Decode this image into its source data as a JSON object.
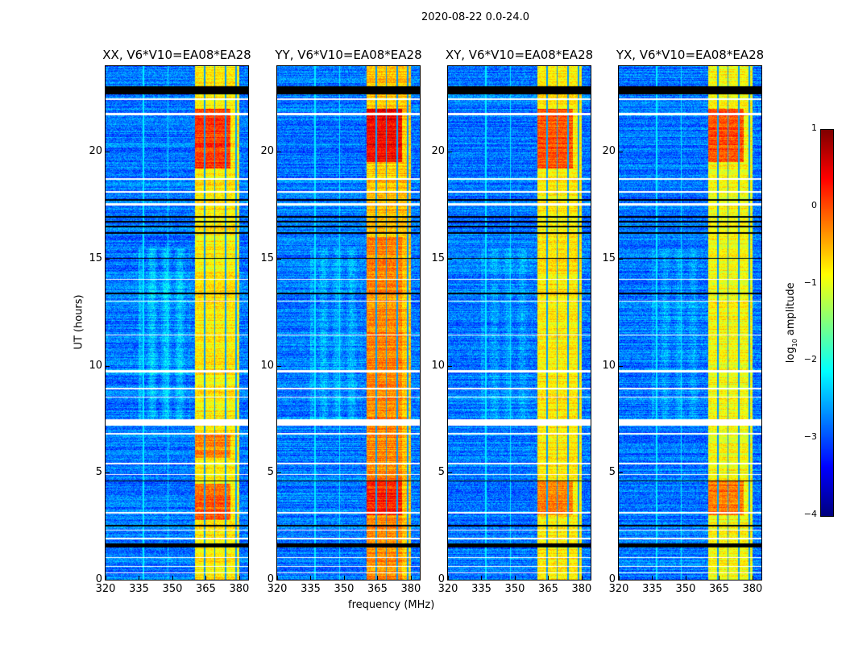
{
  "chart_data": {
    "type": "heatmap",
    "title": "2020-08-22 0.0-24.0",
    "xlabel": "frequency (MHz)",
    "ylabel": "UT (hours)",
    "xlim": [
      320,
      384
    ],
    "ylim": [
      0,
      24
    ],
    "xticks": [
      "320",
      "335",
      "350",
      "365",
      "380"
    ],
    "xtick_values": [
      320,
      335,
      350,
      365,
      380
    ],
    "yticks": [
      "0",
      "5",
      "10",
      "15",
      "20"
    ],
    "ytick_values": [
      0,
      5,
      10,
      15,
      20
    ],
    "colorbar": {
      "label": "log10 amplitude",
      "label_main": "log",
      "label_sub": "10",
      "label_rest": " amplitude",
      "colormap": "jet",
      "range": [
        -4,
        1
      ],
      "ticks": [
        "1",
        "0",
        "−1",
        "−2",
        "−3",
        "−4"
      ],
      "tick_values": [
        1,
        0,
        -1,
        -2,
        -3,
        -4
      ]
    },
    "background_level": -2.8,
    "rfi_band_mhz": [
      360,
      380
    ],
    "rfi_gaps_mhz": [
      364.5,
      369,
      374,
      378.5
    ],
    "flagged_white_hours": [
      [
        7.2,
        7.5
      ],
      [
        22.4,
        22.5
      ],
      [
        21.7,
        21.8
      ],
      [
        18.7,
        18.75
      ],
      [
        18.1,
        18.15
      ],
      [
        17.5,
        17.6
      ],
      [
        14.0,
        14.05
      ],
      [
        13.0,
        13.05
      ],
      [
        11.4,
        11.45
      ],
      [
        9.7,
        9.8
      ],
      [
        8.9,
        8.95
      ],
      [
        8.5,
        8.55
      ],
      [
        6.8,
        6.85
      ],
      [
        5.4,
        5.45
      ],
      [
        4.9,
        4.95
      ],
      [
        3.1,
        3.15
      ],
      [
        2.3,
        2.35
      ],
      [
        1.9,
        1.95
      ],
      [
        1.0,
        1.05
      ],
      [
        0.6,
        0.65
      ],
      [
        0.3,
        0.35
      ]
    ],
    "black_line_hours": [
      [
        22.7,
        23.05
      ],
      [
        17.7,
        17.8
      ],
      [
        16.9,
        17.0
      ],
      [
        16.7,
        16.75
      ],
      [
        16.45,
        16.55
      ],
      [
        16.15,
        16.25
      ],
      [
        15.0,
        15.05
      ],
      [
        13.35,
        13.4
      ],
      [
        4.6,
        4.65
      ],
      [
        2.5,
        2.55
      ],
      [
        1.5,
        1.7
      ]
    ],
    "panels": [
      {
        "title": "XX, V6*V10=EA08*EA28",
        "band_level": -0.8,
        "enhanced": [
          [
            19.2,
            22,
            0.1
          ],
          [
            2.8,
            4.5,
            -0.1
          ],
          [
            5.7,
            6.8,
            -0.3
          ]
        ],
        "diffuse_level": -2.1
      },
      {
        "title": "YY, V6*V10=EA08*EA28",
        "band_level": -0.6,
        "enhanced": [
          [
            19.5,
            22,
            0.4
          ],
          [
            3.0,
            4.6,
            0.2
          ],
          [
            0,
            16,
            -0.3
          ]
        ],
        "diffuse_level": -2.3
      },
      {
        "title": "XY, V6*V10=EA08*EA28",
        "band_level": -0.8,
        "enhanced": [
          [
            19.2,
            22,
            0.0
          ],
          [
            3.0,
            4.6,
            -0.2
          ]
        ],
        "diffuse_level": -2.4
      },
      {
        "title": "YX, V6*V10=EA08*EA28",
        "band_level": -0.9,
        "enhanced": [
          [
            19.5,
            22,
            0.0
          ],
          [
            3.0,
            4.6,
            -0.2
          ]
        ],
        "diffuse_level": -2.4
      }
    ]
  }
}
